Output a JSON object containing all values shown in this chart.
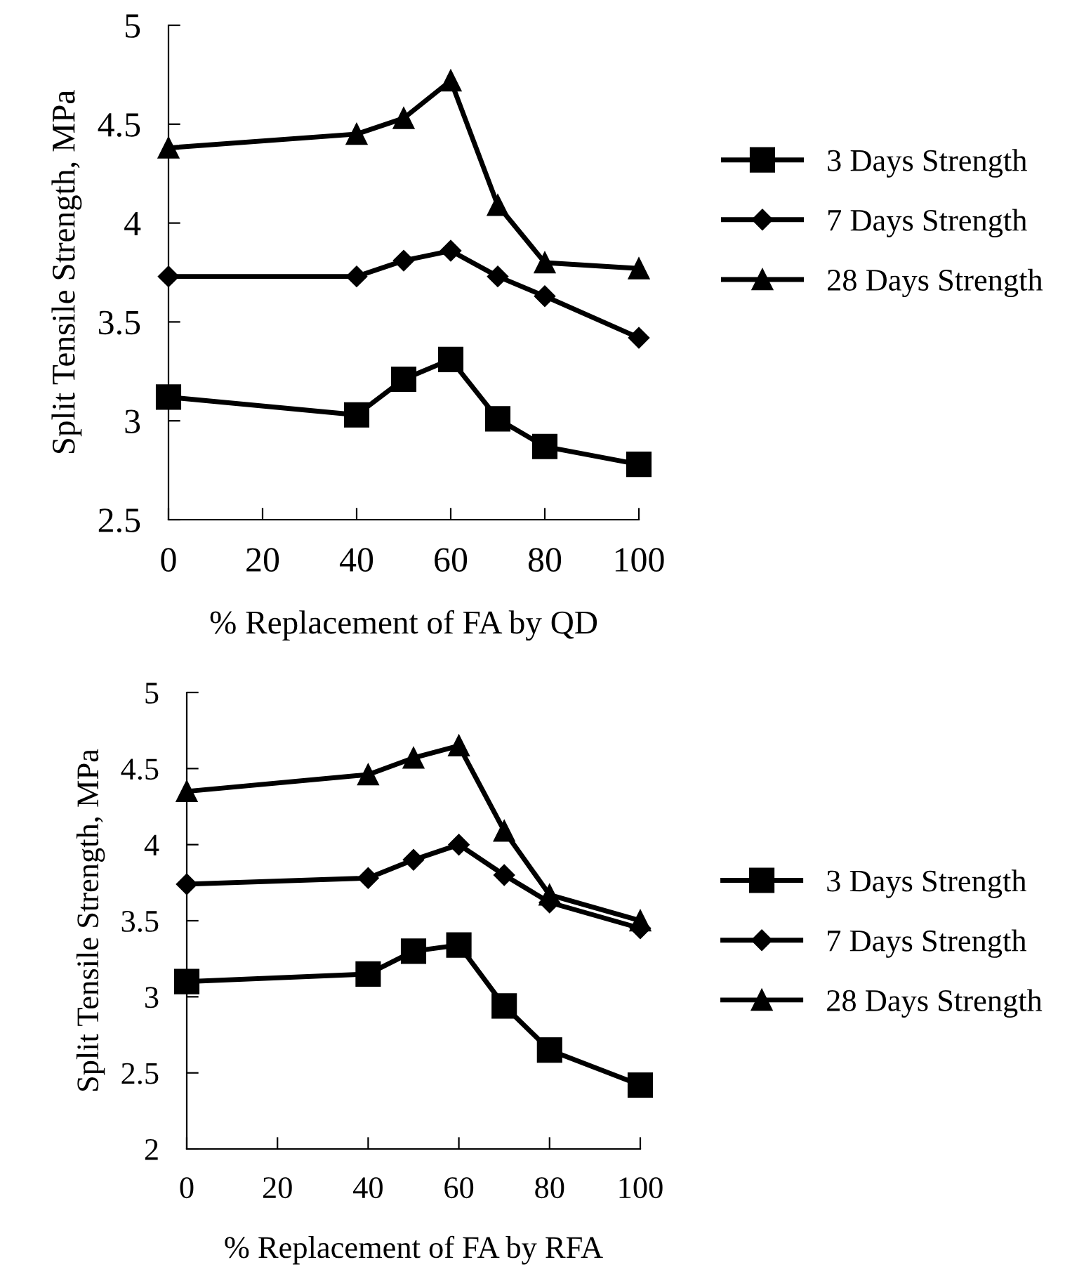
{
  "chart_data": [
    {
      "type": "line",
      "xlabel": "% Replacement of FA by QD",
      "ylabel": "Split Tensile Strength, MPa",
      "x": [
        0,
        40,
        50,
        60,
        70,
        80,
        100
      ],
      "series": [
        {
          "name": "3 Days Strength",
          "color": "#000000",
          "marker": "square",
          "values": [
            3.12,
            3.03,
            3.21,
            3.31,
            3.01,
            2.87,
            2.78
          ]
        },
        {
          "name": "7 Days Strength",
          "color": "#000000",
          "marker": "diamond",
          "values": [
            3.73,
            3.73,
            3.81,
            3.86,
            3.73,
            3.63,
            3.42
          ]
        },
        {
          "name": "28 Days Strength",
          "color": "#000000",
          "marker": "triangle",
          "values": [
            4.38,
            4.45,
            4.53,
            4.72,
            4.09,
            3.8,
            3.77
          ]
        }
      ],
      "xlim": [
        0,
        100
      ],
      "xticks": [
        0,
        20,
        40,
        60,
        80,
        100
      ],
      "ylim": [
        2.5,
        5
      ],
      "yticks": [
        2.5,
        3,
        3.5,
        4,
        4.5,
        5
      ],
      "grid": false,
      "legend": "right"
    },
    {
      "type": "line",
      "xlabel": "% Replacement of FA by RFA",
      "ylabel": "Split Tensile Strength, MPa",
      "x": [
        0,
        40,
        50,
        60,
        70,
        80,
        100
      ],
      "series": [
        {
          "name": "3 Days Strength",
          "color": "#000000",
          "marker": "square",
          "values": [
            3.1,
            3.15,
            3.3,
            3.34,
            2.94,
            2.65,
            2.42
          ]
        },
        {
          "name": "7 Days Strength",
          "color": "#000000",
          "marker": "diamond",
          "values": [
            3.74,
            3.78,
            3.9,
            4.0,
            3.8,
            3.62,
            3.45
          ]
        },
        {
          "name": "28 Days Strength",
          "color": "#000000",
          "marker": "triangle",
          "values": [
            4.35,
            4.46,
            4.57,
            4.65,
            4.09,
            3.67,
            3.5
          ]
        }
      ],
      "xlim": [
        0,
        100
      ],
      "xticks": [
        0,
        20,
        40,
        60,
        80,
        100
      ],
      "ylim": [
        2,
        5
      ],
      "yticks": [
        2,
        2.5,
        3,
        3.5,
        4,
        4.5,
        5
      ],
      "grid": false,
      "legend": "right"
    }
  ]
}
